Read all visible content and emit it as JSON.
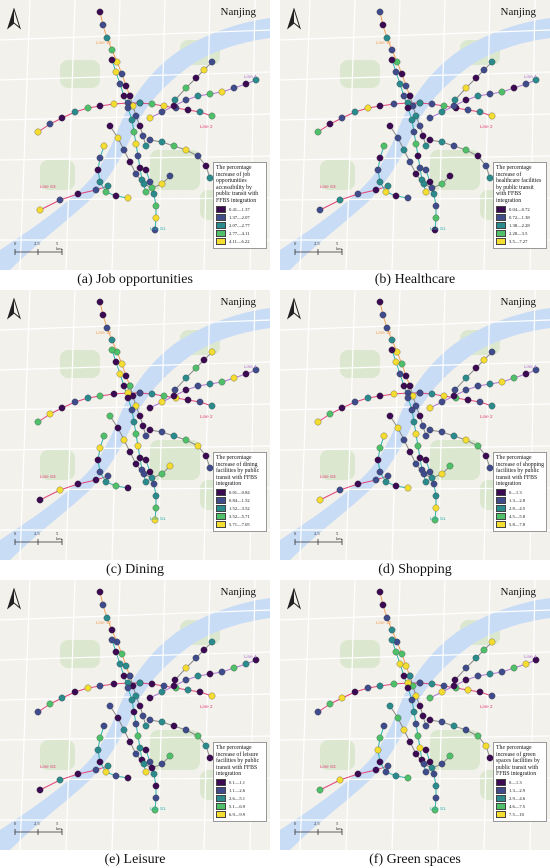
{
  "city": "Nanjing",
  "colors": {
    "c1": "#3b0a52",
    "c2": "#3f4b8a",
    "c3": "#2a8a8c",
    "c4": "#4fbf6a",
    "c5": "#f4dc30",
    "water": "#c9dcf5",
    "green": "#dbe8cf",
    "road": "#ffffff",
    "line_orange": "#f0a15a",
    "line_red": "#e0457b",
    "line_purple": "#b07ad1",
    "line_teal": "#2db3b1"
  },
  "line_labels": {
    "l10": "Line 10",
    "l4": "Line 4",
    "l2": "Line 2",
    "ls3": "Line S3",
    "ls1": "Line S1",
    "l3": "Line 3"
  },
  "scale": {
    "a": "0",
    "b": "2.5",
    "c": "5 km"
  },
  "panels": [
    {
      "caption": "(a) Job opportunities",
      "legend_title": "The percentage increase of job opportunities accessibility by public transit with FFBS integration",
      "classes": [
        "0.41—1.37",
        "1.37—2.07",
        "2.07—2.77",
        "2.77—4.11",
        "4.11—6.22"
      ]
    },
    {
      "caption": "(b) Healthcare",
      "legend_title": "The percentage increase of healthcare facilities by public transit with FFBS integration",
      "classes": [
        "0.04—0.72",
        "0.72—1.38",
        "1.38—2.28",
        "2.28—3.5",
        "3.5—7.27"
      ]
    },
    {
      "caption": "(c) Dining",
      "legend_title": "The percentage increase of dining facilities by public transit with FFBS integration",
      "classes": [
        "0.01—0.84",
        "0.84—1.52",
        "1.52—3.52",
        "3.52—5.71",
        "5.71—7.05"
      ]
    },
    {
      "caption": "(d) Shopping",
      "legend_title": "The percentage increase of shopping facilities by public transit with FFBS integration",
      "classes": [
        "0—1.3",
        "1.3—2.8",
        "2.8—4.5",
        "4.5—5.8",
        "5.8—7.8"
      ]
    },
    {
      "caption": "(e) Leisure",
      "legend_title": "The percentage increase of leisure facilities by public transit with FFBS integration",
      "classes": [
        "0.1—1.1",
        "1.1—2.6",
        "2.6—5.1",
        "5.1—6.9",
        "6.9—9.9"
      ]
    },
    {
      "caption": "(f) Green spaces",
      "legend_title": "The percentage increase of green spaces facilities by public transit with FFBS integration",
      "classes": [
        "0—1.3",
        "1.3—2.9",
        "2.9—4.6",
        "4.6—7.5",
        "7.5—10"
      ]
    }
  ]
}
